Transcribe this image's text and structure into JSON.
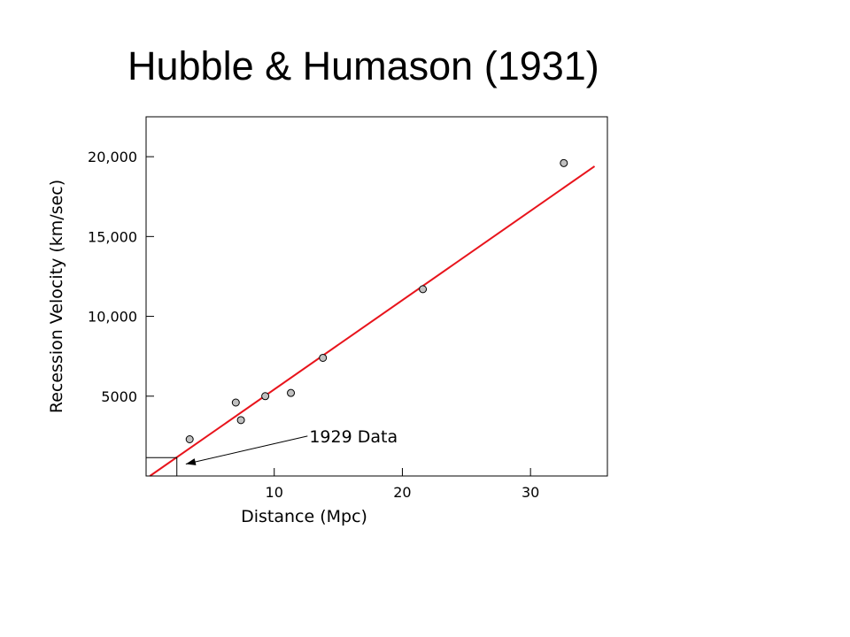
{
  "page": {
    "title": "Hubble & Humason (1931)"
  },
  "chart_data": {
    "type": "scatter",
    "title": "Hubble & Humason (1931)",
    "xlabel": "Distance (Mpc)",
    "ylabel": "Recession Velocity (km/sec)",
    "xlim": [
      0,
      36
    ],
    "ylim": [
      0,
      22500
    ],
    "x_ticks": [
      10,
      20,
      30
    ],
    "x_tick_labels": [
      "10",
      "20",
      "30"
    ],
    "y_ticks": [
      5000,
      10000,
      15000,
      20000
    ],
    "y_tick_labels": [
      "5000",
      "10,000",
      "15,000",
      "20,000"
    ],
    "grid": false,
    "legend": "none",
    "series": [
      {
        "type": "scatter",
        "points": [
          {
            "x": 3.4,
            "y": 2300
          },
          {
            "x": 7.0,
            "y": 4600
          },
          {
            "x": 7.4,
            "y": 3500
          },
          {
            "x": 9.3,
            "y": 5000
          },
          {
            "x": 11.3,
            "y": 5200
          },
          {
            "x": 13.8,
            "y": 7400
          },
          {
            "x": 21.6,
            "y": 11700
          },
          {
            "x": 32.6,
            "y": 19600
          }
        ],
        "marker_fill": "#c0c0c0",
        "marker_stroke": "#000000"
      },
      {
        "type": "line",
        "points": [
          {
            "x": 0.3,
            "y": 0
          },
          {
            "x": 35.0,
            "y": 19400
          }
        ],
        "color": "#e8141c"
      }
    ],
    "annotations": [
      {
        "text": "1929 Data",
        "region": {
          "x0": 0,
          "x1": 2.4,
          "y0": 0,
          "y1": 1150
        },
        "arrow_from": {
          "x": 12.6,
          "y": 2500
        },
        "arrow_to": {
          "x": 3.1,
          "y": 750
        }
      }
    ]
  }
}
